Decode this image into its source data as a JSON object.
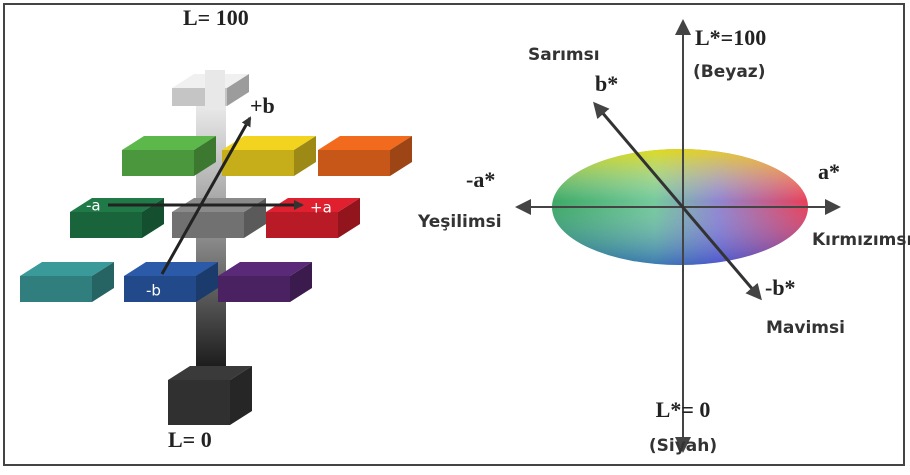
{
  "left_diagram": {
    "top_label": "L= 100",
    "bottom_label": "L= 0",
    "axis_labels": {
      "plus_b": "+b",
      "minus_a": "-a",
      "plus_a": "+a",
      "minus_b": "-b"
    }
  },
  "right_diagram": {
    "yellowish": "Sarımsı",
    "b_star": "b*",
    "l_top": "L*=100",
    "white": "(Beyaz)",
    "a_star": "a*",
    "minus_a_star": "-a*",
    "greenish": "Yeşilimsi",
    "reddish": "Kırmızımsı",
    "minus_b_star": "-b*",
    "bluish": "Mavimsi",
    "l_bottom": "L*= 0",
    "black": "(Siyah)"
  }
}
